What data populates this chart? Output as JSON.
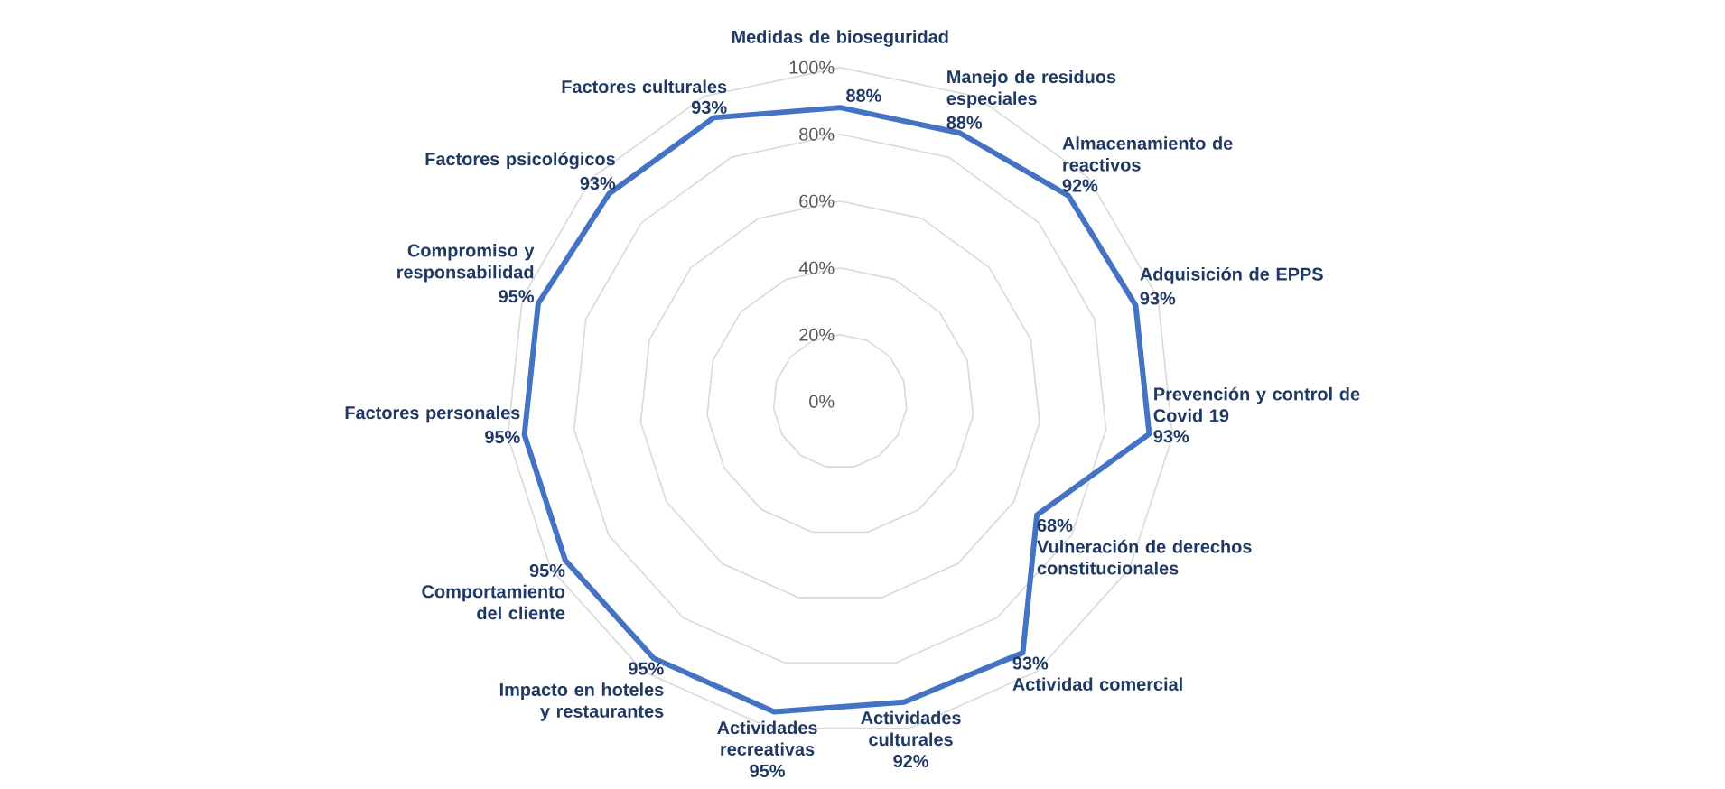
{
  "chart_data": {
    "type": "radar",
    "categories": [
      "Medidas de bioseguridad",
      "Manejo de residuos especiales",
      "Almacenamiento de reactivos",
      "Adquisición de EPPS",
      "Prevención y control de Covid 19",
      "Vulneración de derechos constitucionales",
      "Actividad comercial",
      "Actividades culturales",
      "Actividades recreativas",
      "Impacto en hoteles y restaurantes",
      "Comportamiento del cliente",
      "Factores personales",
      "Compromiso y responsabilidad",
      "Factores psicológicos",
      "Factores culturales"
    ],
    "series": [
      {
        "color": "#4472c4",
        "values": [
          88,
          88,
          92,
          93,
          93,
          68,
          93,
          92,
          95,
          95,
          95,
          95,
          95,
          93,
          93
        ],
        "value_labels": [
          "88%",
          "88%",
          "92%",
          "93%",
          "93%",
          "68%",
          "93%",
          "92%",
          "95%",
          "95%",
          "95%",
          "95%",
          "95%",
          "93%",
          "93%"
        ]
      }
    ],
    "ylim": [
      0,
      100
    ],
    "yticks": [
      {
        "value": 0,
        "label": "0%"
      },
      {
        "value": 20,
        "label": "20%"
      },
      {
        "value": 40,
        "label": "40%"
      },
      {
        "value": 60,
        "label": "60%"
      },
      {
        "value": 80,
        "label": "80%"
      },
      {
        "value": 100,
        "label": "100%"
      }
    ],
    "grid": true
  }
}
